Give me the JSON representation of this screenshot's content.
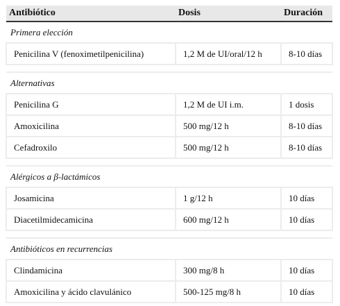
{
  "table": {
    "header": [
      "Antibiótico",
      "Dosis",
      "Duración"
    ],
    "sections": [
      {
        "title": "Primera elección",
        "rows": [
          [
            "Penicilina V (fenoximetilpenicilina)",
            "1,2 M de UI/oral/12 h",
            "8-10 días"
          ]
        ]
      },
      {
        "title": "Alternativas",
        "rows": [
          [
            "Penicilina G",
            "1,2 M de UI i.m.",
            "1 dosis"
          ],
          [
            "Amoxicilina",
            "500 mg/12 h",
            "8-10 días"
          ],
          [
            "Cefadroxilo",
            "500 mg/12 h",
            "8-10 días"
          ]
        ]
      },
      {
        "title": "Alérgicos a β-lactámicos",
        "rows": [
          [
            "Josamicina",
            "1 g/12 h",
            "10 días"
          ],
          [
            "Diacetilmidecamicina",
            "600 mg/12 h",
            "10 días"
          ]
        ]
      },
      {
        "title": "Antibióticos en recurrencias",
        "rows": [
          [
            "Clindamicina",
            "300 mg/8 h",
            "10 días"
          ],
          [
            "Amoxicilina y ácido clavulánico",
            "500-125 mg/8 h",
            "10 días"
          ]
        ]
      }
    ]
  }
}
